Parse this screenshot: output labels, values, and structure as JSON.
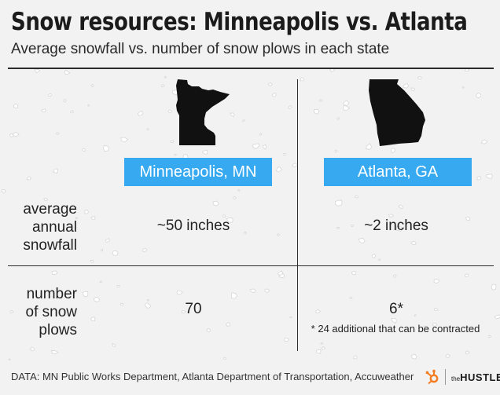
{
  "header": {
    "title": "Snow resources: Minneapolis vs. Atlanta",
    "subtitle": "Average snowfall vs. number of snow plows in each state"
  },
  "cities": [
    {
      "name": "Minneapolis, MN",
      "state_shape": "minnesota-silhouette"
    },
    {
      "name": "Atlanta, GA",
      "state_shape": "georgia-silhouette"
    }
  ],
  "rows": [
    {
      "label_lines": [
        "average",
        "annual",
        "snowfall"
      ],
      "values": [
        "~50 inches",
        "~2 inches"
      ]
    },
    {
      "label_lines": [
        "number",
        "of snow",
        "plows"
      ],
      "values": [
        "70",
        "6*"
      ]
    }
  ],
  "footnote": "* 24 additional that can be contracted",
  "source": "DATA: MN Public Works Department, Atlanta Department of Transportation, Accuweather",
  "brand": {
    "prefix": "the",
    "name": "HUSTLE",
    "logo": "hubspot-sprocket-icon"
  },
  "colors": {
    "badge": "#36a9f0",
    "logo": "#f57c20",
    "background": "#f2f2f2"
  }
}
